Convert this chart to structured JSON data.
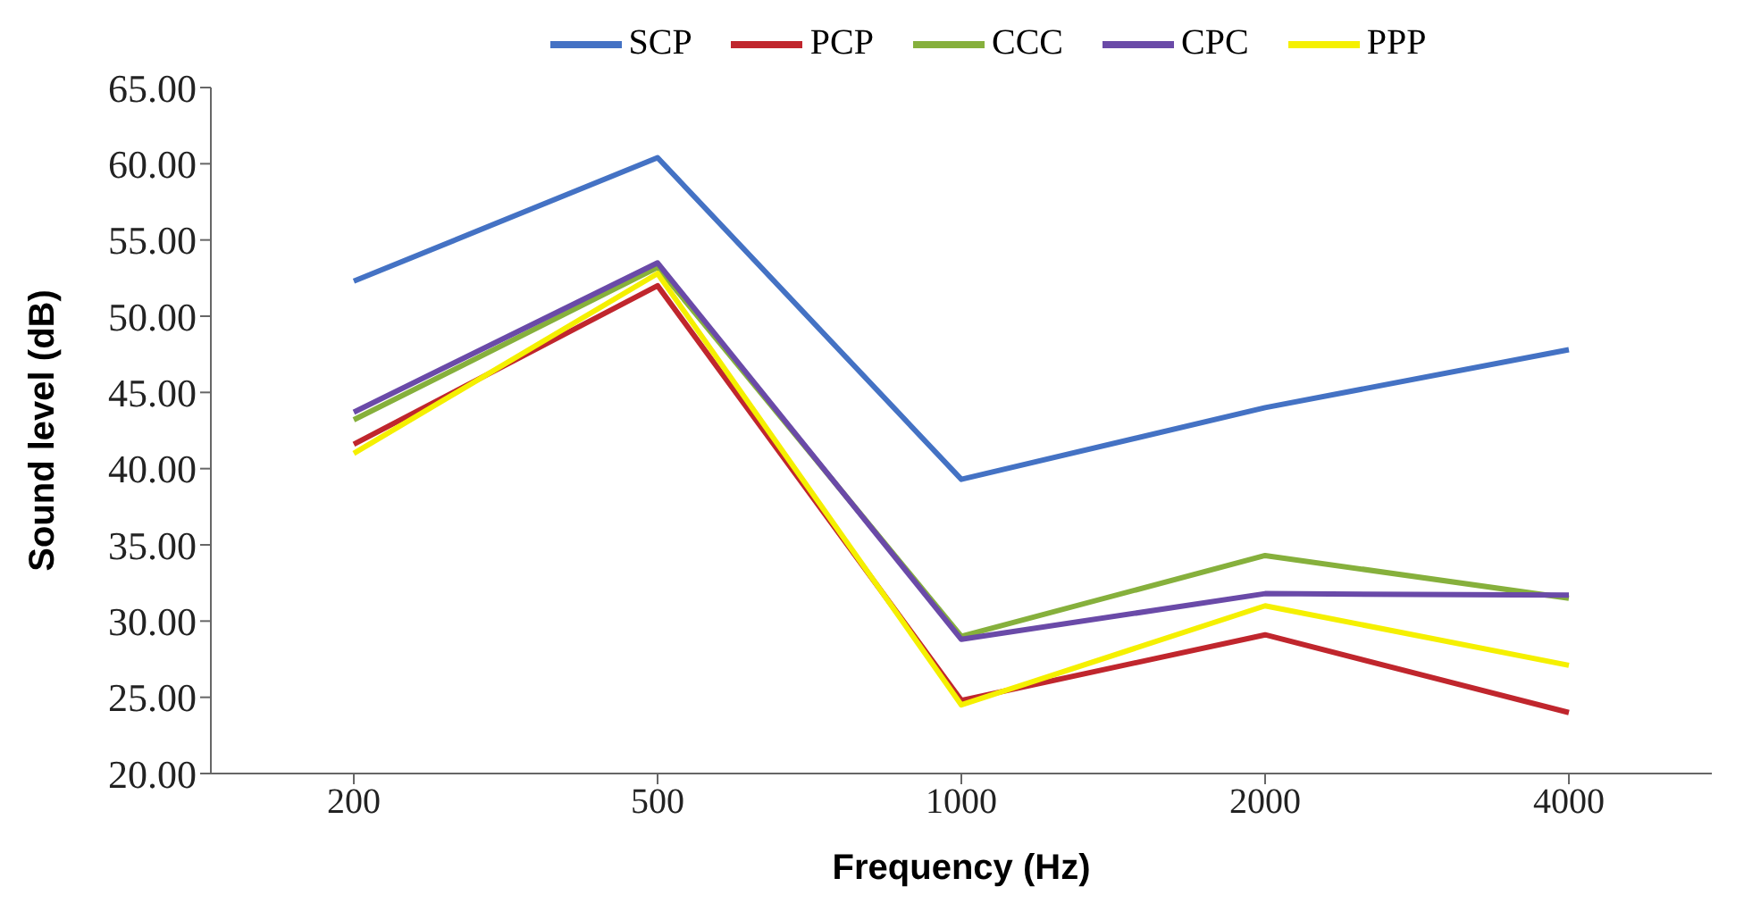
{
  "chart_data": {
    "type": "line",
    "xlabel": "Frequency  (Hz)",
    "ylabel": "Sound level (dB)",
    "categories": [
      "200",
      "500",
      "1000",
      "2000",
      "4000"
    ],
    "series": [
      {
        "name": "SCP",
        "color": "#4472c4",
        "values": [
          52.3,
          60.4,
          39.3,
          44.0,
          47.8
        ]
      },
      {
        "name": "PCP",
        "color": "#c0262d",
        "values": [
          41.6,
          52.0,
          24.8,
          29.1,
          24.0
        ]
      },
      {
        "name": "CCC",
        "color": "#86b03c",
        "values": [
          43.2,
          53.2,
          29.0,
          34.3,
          31.5
        ]
      },
      {
        "name": "CPC",
        "color": "#6a4aa8",
        "values": [
          43.7,
          53.5,
          28.8,
          31.8,
          31.7
        ]
      },
      {
        "name": "PPP",
        "color": "#f5f000",
        "values": [
          41.0,
          52.8,
          24.5,
          31.0,
          27.1
        ]
      }
    ],
    "ylim": [
      20,
      65
    ],
    "yticks": [
      {
        "value": 20,
        "label": "20.00"
      },
      {
        "value": 25,
        "label": "25.00"
      },
      {
        "value": 30,
        "label": "30.00"
      },
      {
        "value": 35,
        "label": "35.00"
      },
      {
        "value": 40,
        "label": "40.00"
      },
      {
        "value": 45,
        "label": "45.00"
      },
      {
        "value": 50,
        "label": "50.00"
      },
      {
        "value": 55,
        "label": "55.00"
      },
      {
        "value": 60,
        "label": "60.00"
      },
      {
        "value": 65,
        "label": "65.00"
      }
    ],
    "grid": false,
    "legend": "top",
    "marker": "none",
    "line_style": "solid"
  }
}
